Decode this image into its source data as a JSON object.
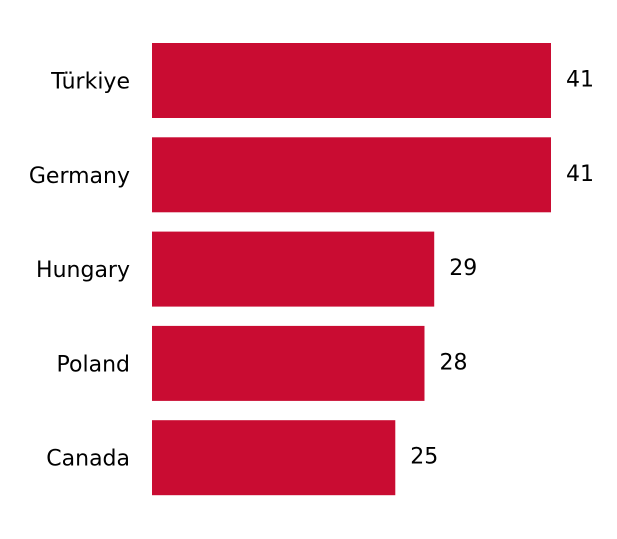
{
  "chart_data": {
    "type": "hbar",
    "categories": [
      "Türkiye",
      "Germany",
      "Hungary",
      "Poland",
      "Canada"
    ],
    "values": [
      41,
      41,
      29,
      28,
      25
    ],
    "color": "#c90c32"
  }
}
